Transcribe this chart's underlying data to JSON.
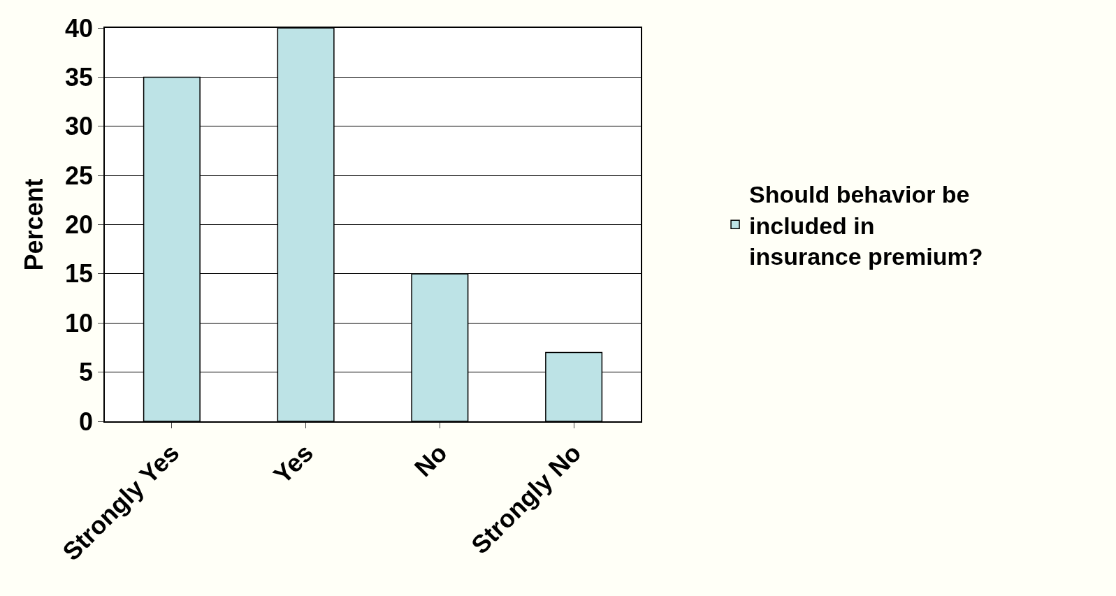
{
  "chart_data": {
    "type": "bar",
    "ylabel": "Percent",
    "categories": [
      "Strongly Yes",
      "Yes",
      "No",
      "Strongly No"
    ],
    "series": [
      {
        "name": "Should behavior be included in insurance premium?",
        "color": "#bde3e6",
        "values": [
          35,
          40,
          15,
          7
        ]
      }
    ],
    "ylim": [
      0,
      40
    ],
    "yticks": [
      0,
      5,
      10,
      15,
      20,
      25,
      30,
      35,
      40
    ],
    "grid": "y",
    "legend": "right"
  }
}
